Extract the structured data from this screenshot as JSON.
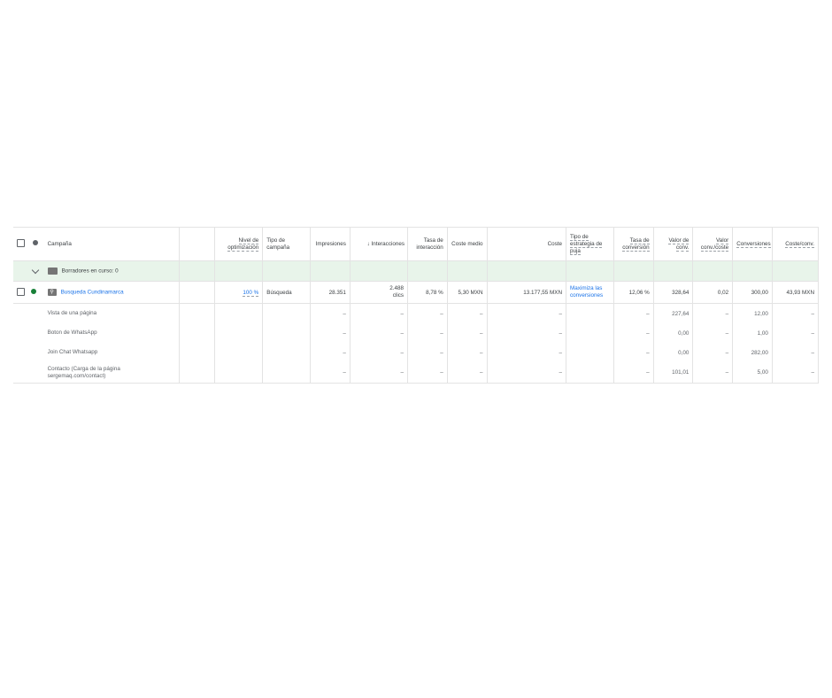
{
  "colors": {
    "group_bg": "#e8f4ea",
    "link": "#1a73e8",
    "status_enabled": "#188038",
    "status_header": "#5f6368"
  },
  "header": {
    "campaign": "Campaña",
    "opt": "Nivel de optimización",
    "type": "Tipo de campaña",
    "impr": "Impresiones",
    "inter": "Interacciones",
    "inter_sort": "↓",
    "rate": "Tasa de interacción",
    "avg_cost": "Coste medio",
    "cost": "Coste",
    "bid": "Tipo de estrategia de puja",
    "conv_rate": "Tasa de conversión",
    "conv_value": "Valor de conv.",
    "value_cost": "Valor conv./coste",
    "conversions": "Conversiones",
    "cost_conv": "Coste/conv."
  },
  "group": {
    "label": "Borradores en curso: 0",
    "icon": "folder-icon"
  },
  "campaign": {
    "name": "Busqueda Cundinamarca",
    "icon": "search-campaign-icon",
    "opt": "100 %",
    "type": "Búsqueda",
    "impr": "28.351",
    "inter": "2.488",
    "inter_unit": "clics",
    "rate": "8,78 %",
    "avg_cost": "5,30 MXN",
    "cost": "13.177,55 MXN",
    "bid_line1": "Maximiza las",
    "bid_line2": "conversiones",
    "conv_rate": "12,06 %",
    "conv_value": "328,64",
    "value_cost": "0,02",
    "conversions": "300,00",
    "cost_conv": "43,93 MXN"
  },
  "rows": [
    {
      "name": "Vista de una página",
      "impr": "–",
      "inter": "–",
      "rate": "–",
      "avg_cost": "–",
      "cost": "–",
      "conv_rate": "–",
      "conv_value": "227,64",
      "value_cost": "–",
      "conversions": "12,00",
      "cost_conv": "–"
    },
    {
      "name": "Boton de WhatsApp",
      "impr": "–",
      "inter": "–",
      "rate": "–",
      "avg_cost": "–",
      "cost": "–",
      "conv_rate": "–",
      "conv_value": "0,00",
      "value_cost": "–",
      "conversions": "1,00",
      "cost_conv": "–"
    },
    {
      "name": "Join Chat Whatsapp",
      "impr": "–",
      "inter": "–",
      "rate": "–",
      "avg_cost": "–",
      "cost": "–",
      "conv_rate": "–",
      "conv_value": "0,00",
      "value_cost": "–",
      "conversions": "282,00",
      "cost_conv": "–"
    },
    {
      "name": "Contacto (Carga de la página sergemaq.com/contact)",
      "impr": "–",
      "inter": "–",
      "rate": "–",
      "avg_cost": "–",
      "cost": "–",
      "conv_rate": "–",
      "conv_value": "101,01",
      "value_cost": "–",
      "conversions": "5,00",
      "cost_conv": "–"
    }
  ]
}
